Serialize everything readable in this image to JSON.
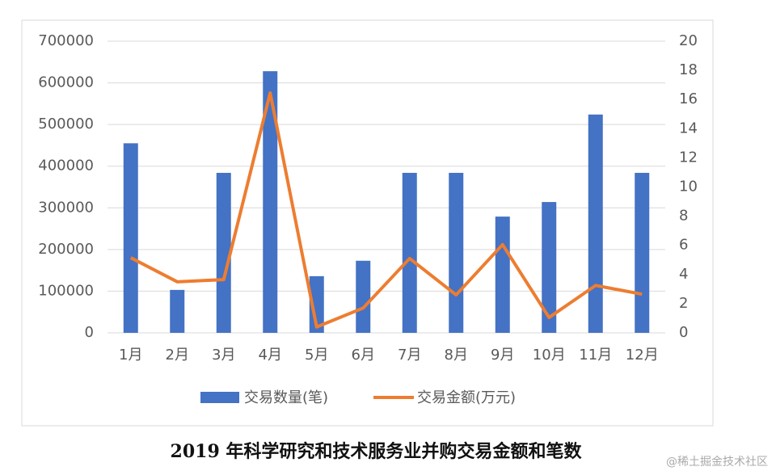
{
  "chart_data": {
    "type": "bar-line",
    "categories": [
      "1月",
      "2月",
      "3月",
      "4月",
      "5月",
      "6月",
      "7月",
      "8月",
      "9月",
      "10月",
      "11月",
      "12月"
    ],
    "series": [
      {
        "name": "交易数量(笔)",
        "color": "#4472c4",
        "type": "bar",
        "values": [
          455000,
          103000,
          384000,
          628000,
          136000,
          173000,
          384000,
          384000,
          279000,
          314000,
          524000,
          384000
        ]
      },
      {
        "name": "交易金额(万元)",
        "color": "#ed7d31",
        "type": "line",
        "axis": "y2",
        "values": [
          5.15,
          3.5,
          3.65,
          16.45,
          0.4,
          1.7,
          5.1,
          2.6,
          6.05,
          1.05,
          3.25,
          2.65
        ]
      }
    ],
    "ylim": [
      0,
      700000
    ],
    "yticks": [
      0,
      100000,
      200000,
      300000,
      400000,
      500000,
      600000,
      700000
    ],
    "y2lim": [
      0,
      20
    ],
    "y2ticks": [
      0,
      2,
      4,
      6,
      8,
      10,
      12,
      14,
      16,
      18,
      20
    ],
    "grid": true,
    "legend": "bottom",
    "caption": "2019 年科学研究和技术服务业并购交易金额和笔数",
    "watermark": "@稀土掘金技术社区"
  }
}
